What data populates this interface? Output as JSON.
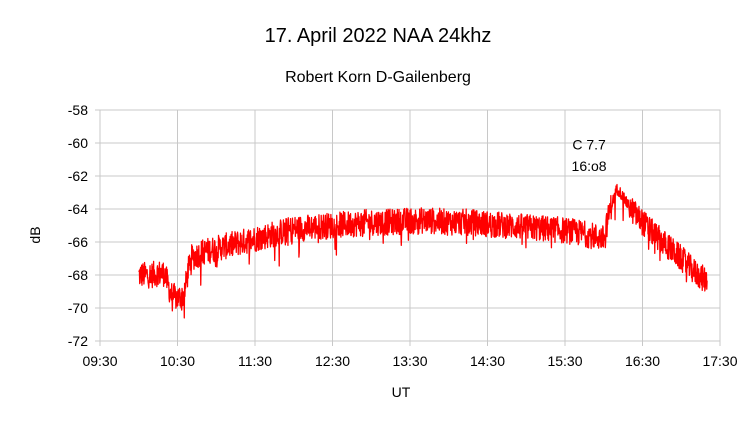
{
  "chart_data": {
    "type": "line",
    "title": "17. April 2022 NAA 24khz",
    "subtitle": "Robert Korn D-Gailenberg",
    "xlabel": "UT",
    "ylabel": "dB",
    "x_ticks": [
      "09:30",
      "10:30",
      "11:30",
      "12:30",
      "13:30",
      "14:30",
      "15:30",
      "16:30",
      "17:30"
    ],
    "xlim": [
      "09:30",
      "17:30"
    ],
    "y_ticks": [
      -58,
      -60,
      -62,
      -64,
      -66,
      -68,
      -70,
      -72
    ],
    "ylim": [
      -72,
      -58
    ],
    "grid": true,
    "line_color": "#ff0000",
    "annotations": [
      {
        "text": "C 7.7",
        "x": "16:08",
        "y": -60.4
      },
      {
        "text": "16:o8",
        "x": "16:08",
        "y": -61.7
      }
    ],
    "series": [
      {
        "x": [
          "10:00",
          "10:05",
          "10:10",
          "10:15",
          "10:20",
          "10:25",
          "10:30",
          "10:35",
          "10:40",
          "10:45",
          "10:50",
          "11:00",
          "11:10",
          "11:20",
          "11:30",
          "11:40",
          "11:50",
          "12:00",
          "12:15",
          "12:30",
          "12:45",
          "13:00",
          "13:15",
          "13:30",
          "13:45",
          "14:00",
          "14:15",
          "14:30",
          "14:45",
          "15:00",
          "15:15",
          "15:30",
          "15:45",
          "16:00",
          "16:05",
          "16:10",
          "16:12",
          "16:15",
          "16:20",
          "16:30",
          "16:40",
          "16:50",
          "17:00",
          "17:10",
          "17:20"
        ],
        "values": [
          -68.0,
          -68.0,
          -68.0,
          -67.9,
          -67.9,
          -69.2,
          -69.4,
          -69.2,
          -67.0,
          -66.8,
          -66.6,
          -66.4,
          -66.2,
          -66.0,
          -65.8,
          -65.6,
          -65.4,
          -65.2,
          -65.1,
          -65.0,
          -64.9,
          -64.8,
          -64.8,
          -64.7,
          -64.7,
          -64.8,
          -64.8,
          -64.9,
          -65.0,
          -65.1,
          -65.2,
          -65.3,
          -65.5,
          -65.8,
          -64.0,
          -62.8,
          -62.9,
          -63.3,
          -63.9,
          -64.8,
          -65.6,
          -66.3,
          -67.0,
          -67.8,
          -68.4
        ]
      }
    ]
  }
}
